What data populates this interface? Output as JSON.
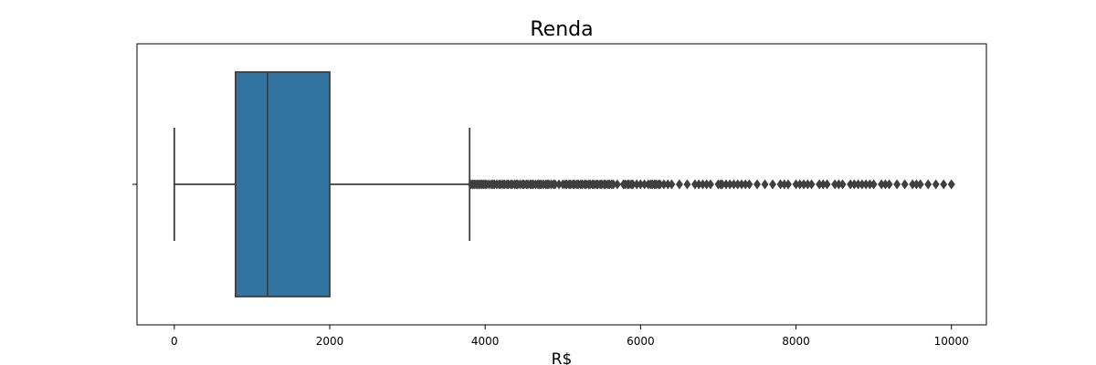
{
  "chart_data": {
    "type": "boxplot",
    "orientation": "horizontal",
    "title": "Renda",
    "xlabel": "R$",
    "ylabel": "",
    "xlim": [
      -480,
      10450
    ],
    "xticks": [
      0,
      2000,
      4000,
      6000,
      8000,
      10000
    ],
    "grid": false,
    "box": {
      "whisker_low": 0,
      "q1": 788,
      "median": 1200,
      "q3": 2000,
      "whisker_high": 3800
    },
    "outliers": [
      3820,
      3840,
      3860,
      3880,
      3900,
      3920,
      3940,
      3960,
      3980,
      4000,
      4020,
      4050,
      4080,
      4100,
      4120,
      4150,
      4180,
      4200,
      4230,
      4250,
      4280,
      4300,
      4330,
      4350,
      4380,
      4400,
      4420,
      4450,
      4480,
      4500,
      4530,
      4550,
      4580,
      4600,
      4620,
      4650,
      4680,
      4700,
      4720,
      4750,
      4780,
      4800,
      4820,
      4850,
      4880,
      4900,
      4950,
      5000,
      5030,
      5050,
      5080,
      5100,
      5130,
      5150,
      5180,
      5200,
      5230,
      5250,
      5280,
      5300,
      5330,
      5350,
      5380,
      5400,
      5430,
      5450,
      5480,
      5500,
      5530,
      5550,
      5580,
      5600,
      5630,
      5650,
      5700,
      5780,
      5800,
      5830,
      5850,
      5880,
      5900,
      5950,
      6000,
      6050,
      6100,
      6130,
      6150,
      6180,
      6200,
      6230,
      6250,
      6300,
      6350,
      6400,
      6500,
      6600,
      6700,
      6750,
      6800,
      6850,
      6900,
      7000,
      7030,
      7050,
      7100,
      7150,
      7200,
      7250,
      7300,
      7350,
      7400,
      7500,
      7600,
      7700,
      7800,
      7850,
      7900,
      8000,
      8050,
      8100,
      8150,
      8200,
      8300,
      8350,
      8400,
      8500,
      8550,
      8600,
      8700,
      8750,
      8800,
      8850,
      8900,
      8950,
      9000,
      9100,
      9150,
      9200,
      9300,
      9400,
      9500,
      9550,
      9600,
      9700,
      9800,
      9900,
      10000
    ],
    "colors": {
      "box_fill": "#3274a1",
      "line": "#3f3f3f",
      "outlier_fill": "#3f3f3f",
      "frame": "#000000"
    }
  }
}
